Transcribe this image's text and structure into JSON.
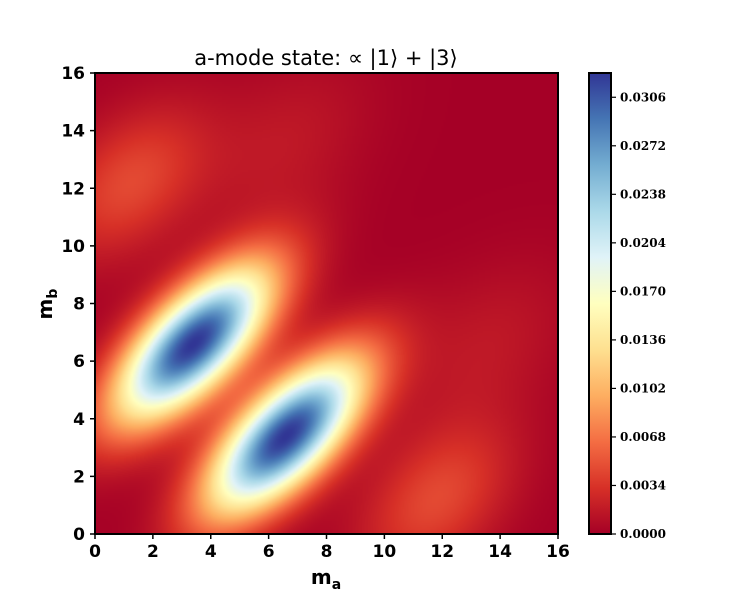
{
  "chart_data": {
    "type": "heatmap",
    "title": "a-mode state: ∝ |1⟩ + |3⟩",
    "xlabel": "m",
    "xlabel_sub": "a",
    "ylabel": "m",
    "ylabel_sub": "b",
    "xlim": [
      0,
      16
    ],
    "ylim": [
      0,
      16
    ],
    "x_ticks": [
      "0",
      "2",
      "4",
      "6",
      "8",
      "10",
      "12",
      "14",
      "16"
    ],
    "y_ticks": [
      "0",
      "2",
      "4",
      "6",
      "8",
      "10",
      "12",
      "14",
      "16"
    ],
    "colorbar": {
      "colormap": "RdYlBu",
      "range": [
        0.0,
        0.0323
      ],
      "ticks": [
        "0.0000",
        "0.0034",
        "0.0068",
        "0.0102",
        "0.0136",
        "0.0170",
        "0.0204",
        "0.0238",
        "0.0272",
        "0.0306"
      ]
    },
    "features": [
      {
        "kind": "peak",
        "center": [
          3.4,
          6.6
        ],
        "value": 0.0323
      },
      {
        "kind": "peak",
        "center": [
          6.6,
          3.4
        ],
        "value": 0.0323
      }
    ]
  }
}
